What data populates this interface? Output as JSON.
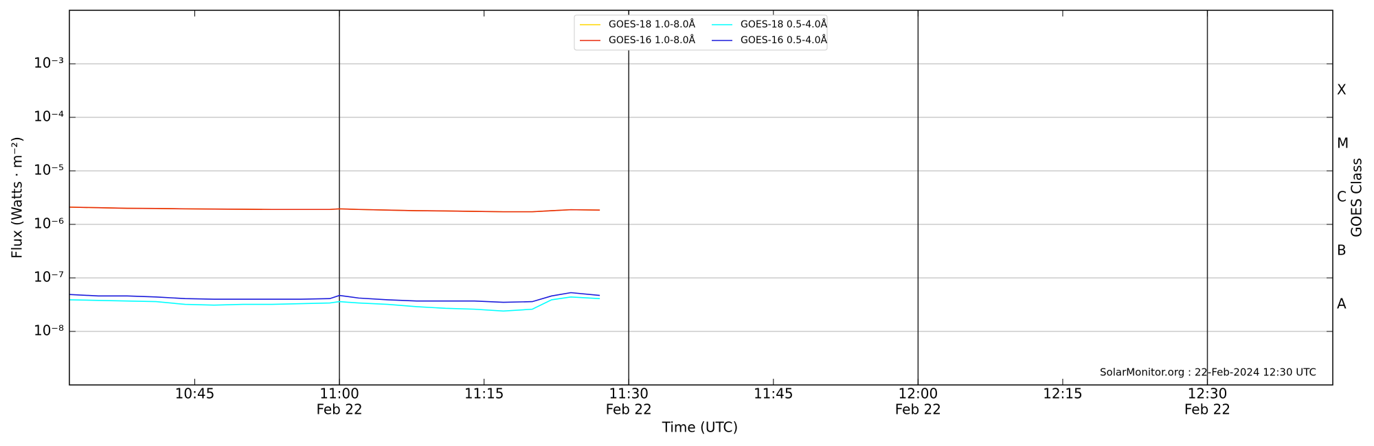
{
  "chart_data": {
    "type": "line",
    "y_label": "Flux (Watts · m⁻²)",
    "x_label": "Time (UTC)",
    "y2_label": "GOES Class",
    "annotation": "SolarMonitor.org : 22-Feb-2024 12:30 UTC",
    "log_y": true,
    "grid": true,
    "legend": "top-center",
    "x": [
      "10:32",
      "10:35",
      "10:38",
      "10:41",
      "10:44",
      "10:47",
      "10:50",
      "10:53",
      "10:56",
      "10:59",
      "11:00",
      "11:02",
      "11:05",
      "11:08",
      "11:11",
      "11:14",
      "11:17",
      "11:20",
      "11:22",
      "11:24",
      "11:27"
    ],
    "xlim": [
      "10:32",
      "12:43"
    ],
    "xticks": [
      "10:45",
      {
        "value": "11:00",
        "label": "11:00",
        "date": "Feb 22"
      },
      "11:15",
      {
        "value": "11:30",
        "label": "11:30",
        "date": "Feb 22"
      },
      "11:45",
      {
        "value": "12:00",
        "label": "12:00",
        "date": "Feb 22"
      },
      "12:15",
      {
        "value": "12:30",
        "label": "12:30",
        "date": "Feb 22"
      }
    ],
    "ylim": [
      1e-09,
      0.01
    ],
    "yticks": [
      {
        "value": 1e-08,
        "label": "10⁻⁸"
      },
      {
        "value": 1e-07,
        "label": "10⁻⁷"
      },
      {
        "value": 1e-06,
        "label": "10⁻⁶"
      },
      {
        "value": 1e-05,
        "label": "10⁻⁵"
      },
      {
        "value": 0.0001,
        "label": "10⁻⁴"
      },
      {
        "value": 0.001,
        "label": "10⁻³"
      }
    ],
    "class_labels": [
      {
        "value": 3.162e-08,
        "label": "A"
      },
      {
        "value": 3.162e-07,
        "label": "B"
      },
      {
        "value": 3.162e-06,
        "label": "C"
      },
      {
        "value": 3.162e-05,
        "label": "M"
      },
      {
        "value": 0.0003162,
        "label": "X"
      }
    ],
    "series": [
      {
        "name": "GOES-18 1.0-8.0Å",
        "color": "#ffd700",
        "values": [
          2.1e-06,
          2.05e-06,
          2e-06,
          1.98e-06,
          1.95e-06,
          1.93e-06,
          1.92e-06,
          1.9e-06,
          1.9e-06,
          1.9e-06,
          1.95e-06,
          1.9e-06,
          1.85e-06,
          1.8e-06,
          1.78e-06,
          1.75e-06,
          1.72e-06,
          1.72e-06,
          1.8e-06,
          1.88e-06,
          1.85e-06
        ]
      },
      {
        "name": "GOES-16 1.0-8.0Å",
        "color": "#e8290b",
        "values": [
          2.1e-06,
          2.05e-06,
          2e-06,
          1.98e-06,
          1.95e-06,
          1.93e-06,
          1.92e-06,
          1.9e-06,
          1.9e-06,
          1.9e-06,
          1.95e-06,
          1.9e-06,
          1.85e-06,
          1.8e-06,
          1.78e-06,
          1.75e-06,
          1.72e-06,
          1.72e-06,
          1.8e-06,
          1.88e-06,
          1.85e-06
        ]
      },
      {
        "name": "GOES-18 0.5-4.0Å",
        "color": "#00ffff",
        "values": [
          3.9e-08,
          3.8e-08,
          3.7e-08,
          3.6e-08,
          3.2e-08,
          3.1e-08,
          3.2e-08,
          3.2e-08,
          3.3e-08,
          3.4e-08,
          3.6e-08,
          3.4e-08,
          3.2e-08,
          2.9e-08,
          2.7e-08,
          2.6e-08,
          2.4e-08,
          2.6e-08,
          3.9e-08,
          4.4e-08,
          4.1e-08
        ]
      },
      {
        "name": "GOES-16 0.5-4.0Å",
        "color": "#1a1adb",
        "values": [
          4.9e-08,
          4.6e-08,
          4.6e-08,
          4.4e-08,
          4.1e-08,
          4e-08,
          4e-08,
          4e-08,
          4e-08,
          4.1e-08,
          4.7e-08,
          4.2e-08,
          3.9e-08,
          3.7e-08,
          3.7e-08,
          3.7e-08,
          3.5e-08,
          3.6e-08,
          4.6e-08,
          5.3e-08,
          4.7e-08
        ]
      }
    ]
  }
}
